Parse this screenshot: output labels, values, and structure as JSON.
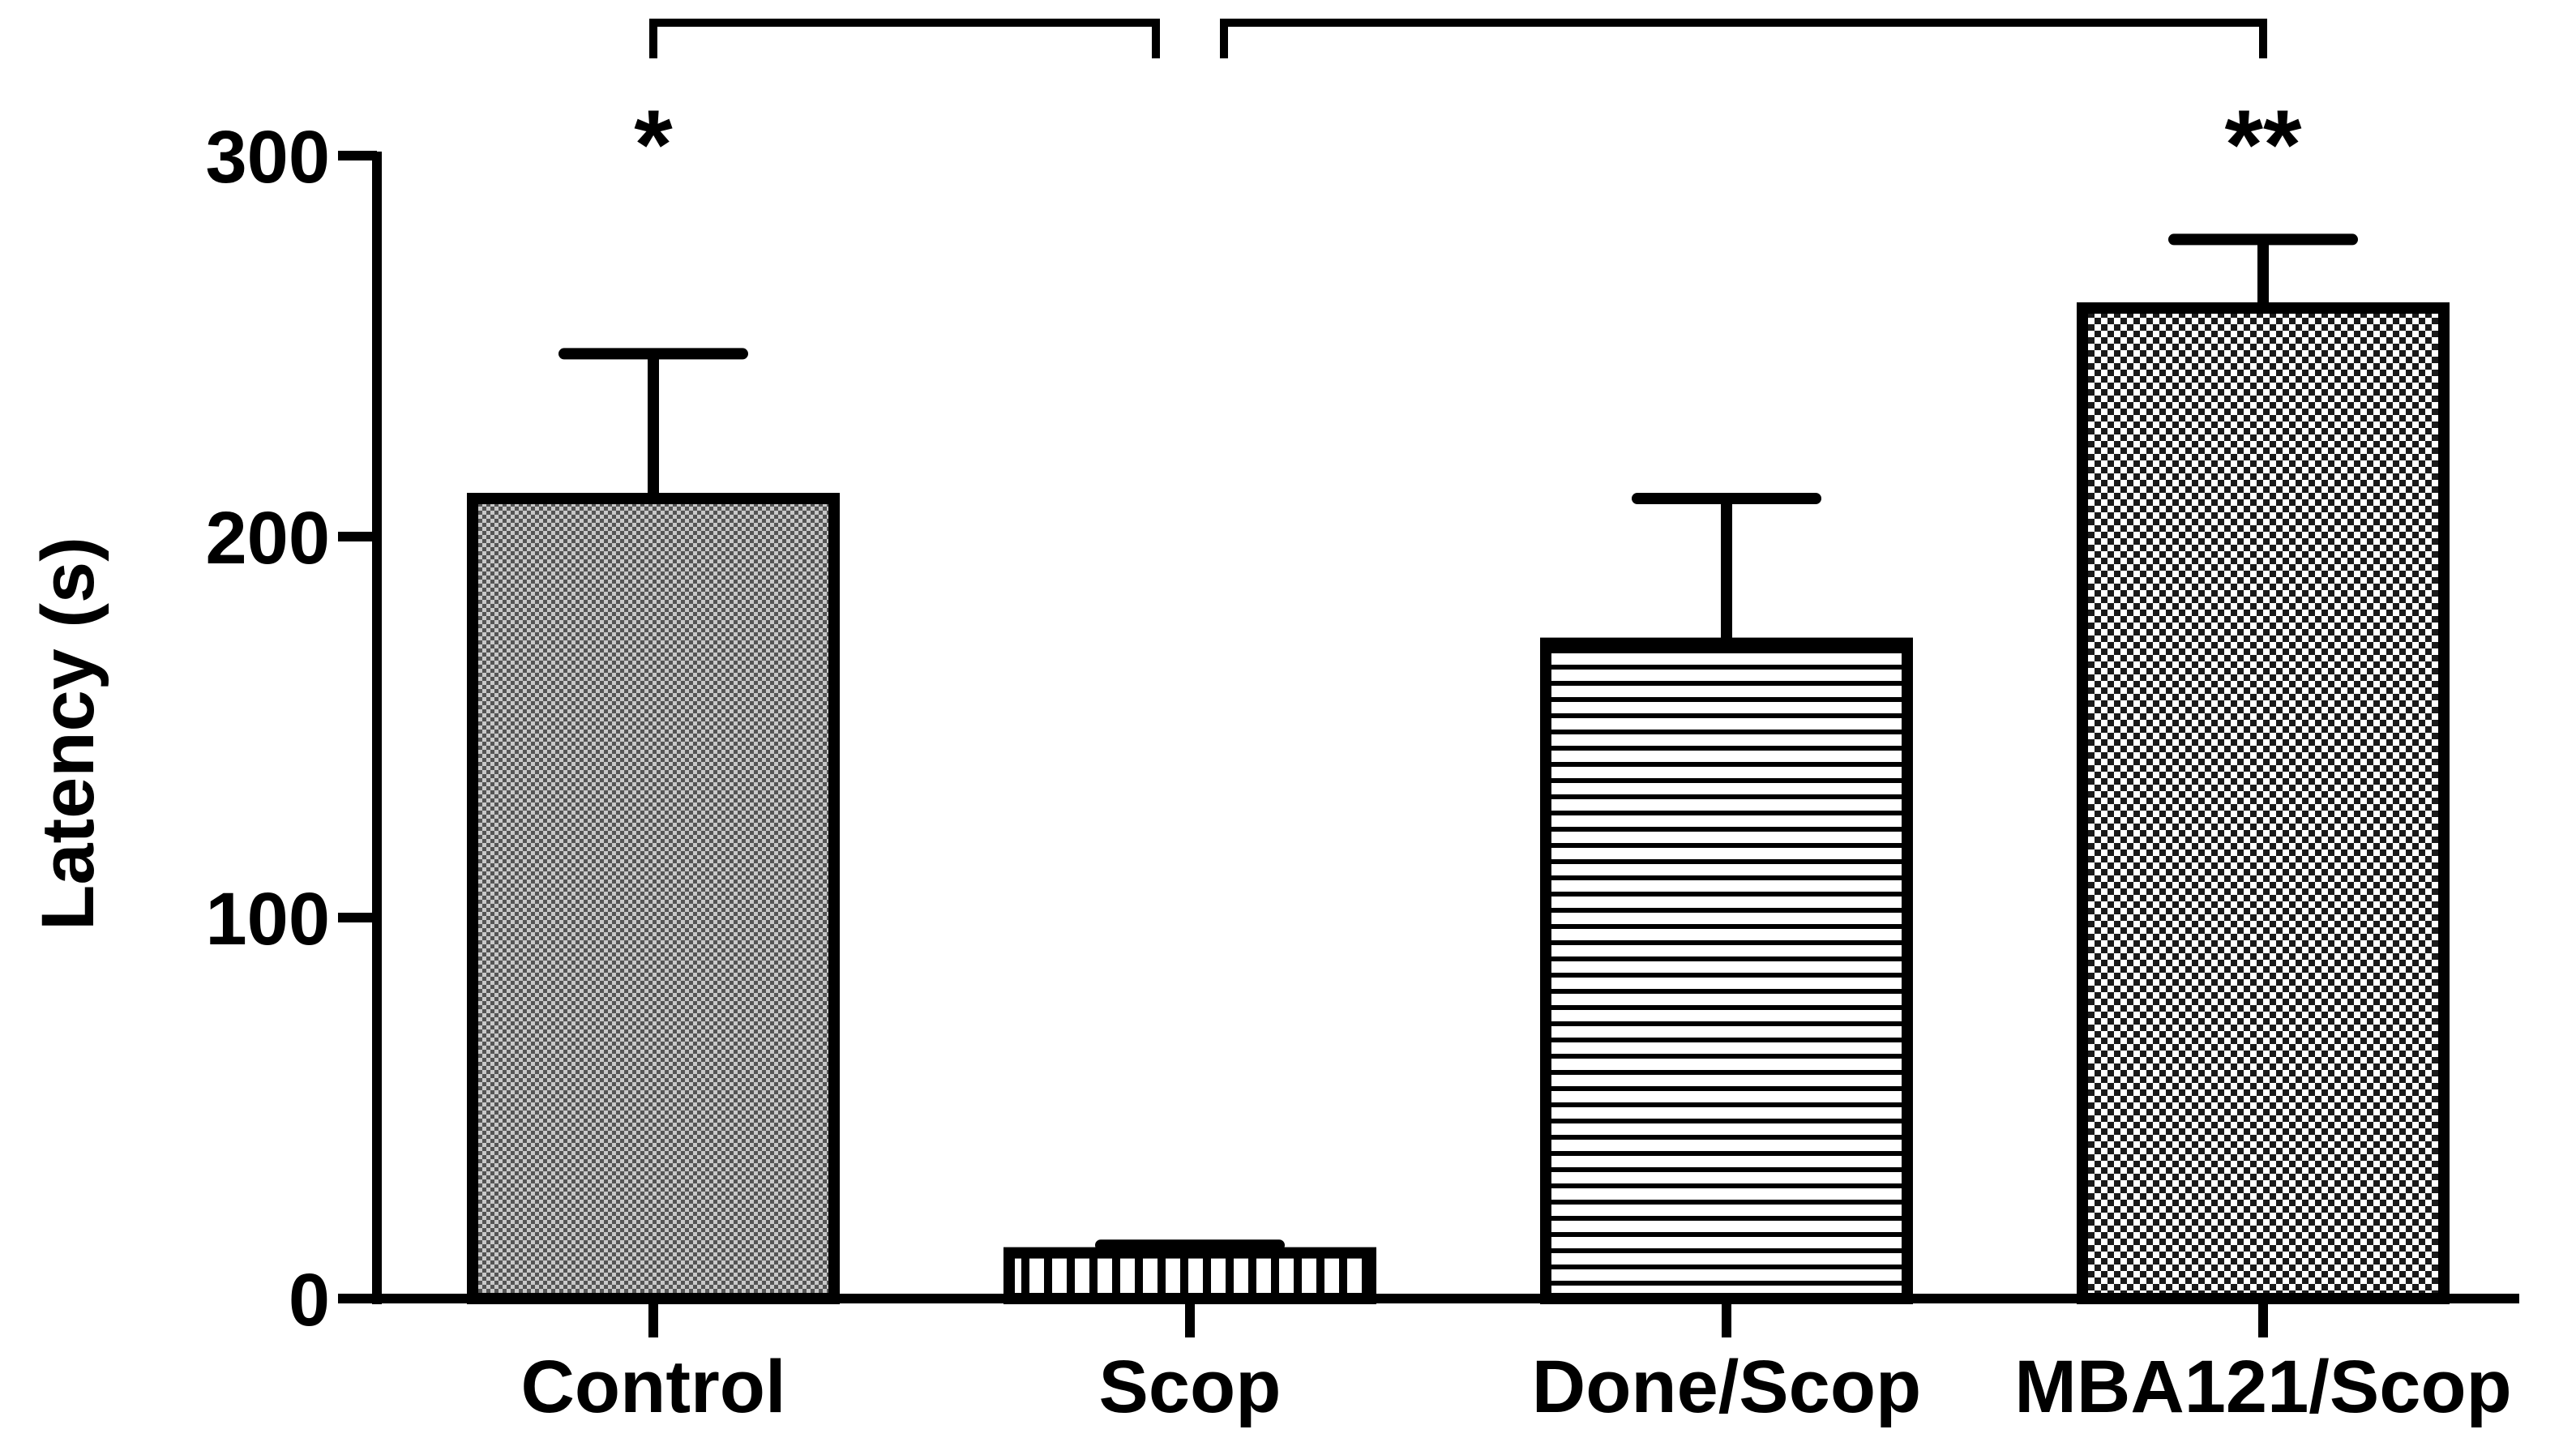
{
  "chart_data": {
    "type": "bar",
    "title": "",
    "xlabel": "",
    "ylabel": "Latency  (s)",
    "ylim": [
      0,
      300
    ],
    "yticks": [
      0,
      100,
      200,
      300
    ],
    "grid": false,
    "categories": [
      "Control",
      "Scop",
      "Done/Scop",
      "MBA121/Scop"
    ],
    "values": [
      210,
      12,
      172,
      260
    ],
    "error_upper": [
      248,
      14,
      210,
      278
    ],
    "bar_patterns": [
      "fine-gray-dots",
      "vertical-lines",
      "horizontal-lines",
      "checkerboard"
    ],
    "significance": [
      {
        "from": "Scop",
        "to": "Control",
        "label": "*"
      },
      {
        "from": "Scop",
        "to": "MBA121/Scop",
        "label": "**"
      }
    ]
  },
  "colors": {
    "stroke": "#000000",
    "background": "#ffffff",
    "control_fill": "#8c8c8c"
  }
}
